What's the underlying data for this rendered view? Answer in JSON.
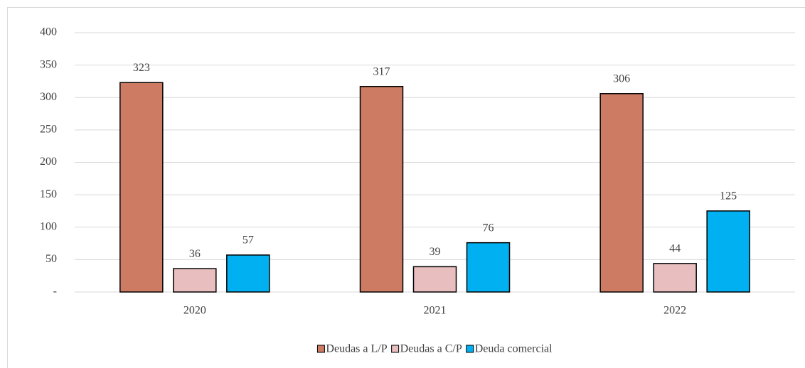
{
  "chart_data": {
    "type": "bar",
    "categories": [
      "2020",
      "2021",
      "2022"
    ],
    "series": [
      {
        "name": "Deudas a L/P",
        "color": "#cd7b63",
        "values": [
          323,
          317,
          306
        ]
      },
      {
        "name": "Deudas a C/P",
        "color": "#e8bebe",
        "values": [
          36,
          39,
          44
        ]
      },
      {
        "name": "Deuda comercial",
        "color": "#00b0f0",
        "values": [
          57,
          76,
          125
        ]
      }
    ],
    "ylim": [
      0,
      400
    ],
    "yticks": [
      {
        "value": 0,
        "label": "-"
      },
      50,
      100,
      150,
      200,
      250,
      300,
      350,
      400
    ],
    "grid": true,
    "legend": "bottom"
  }
}
